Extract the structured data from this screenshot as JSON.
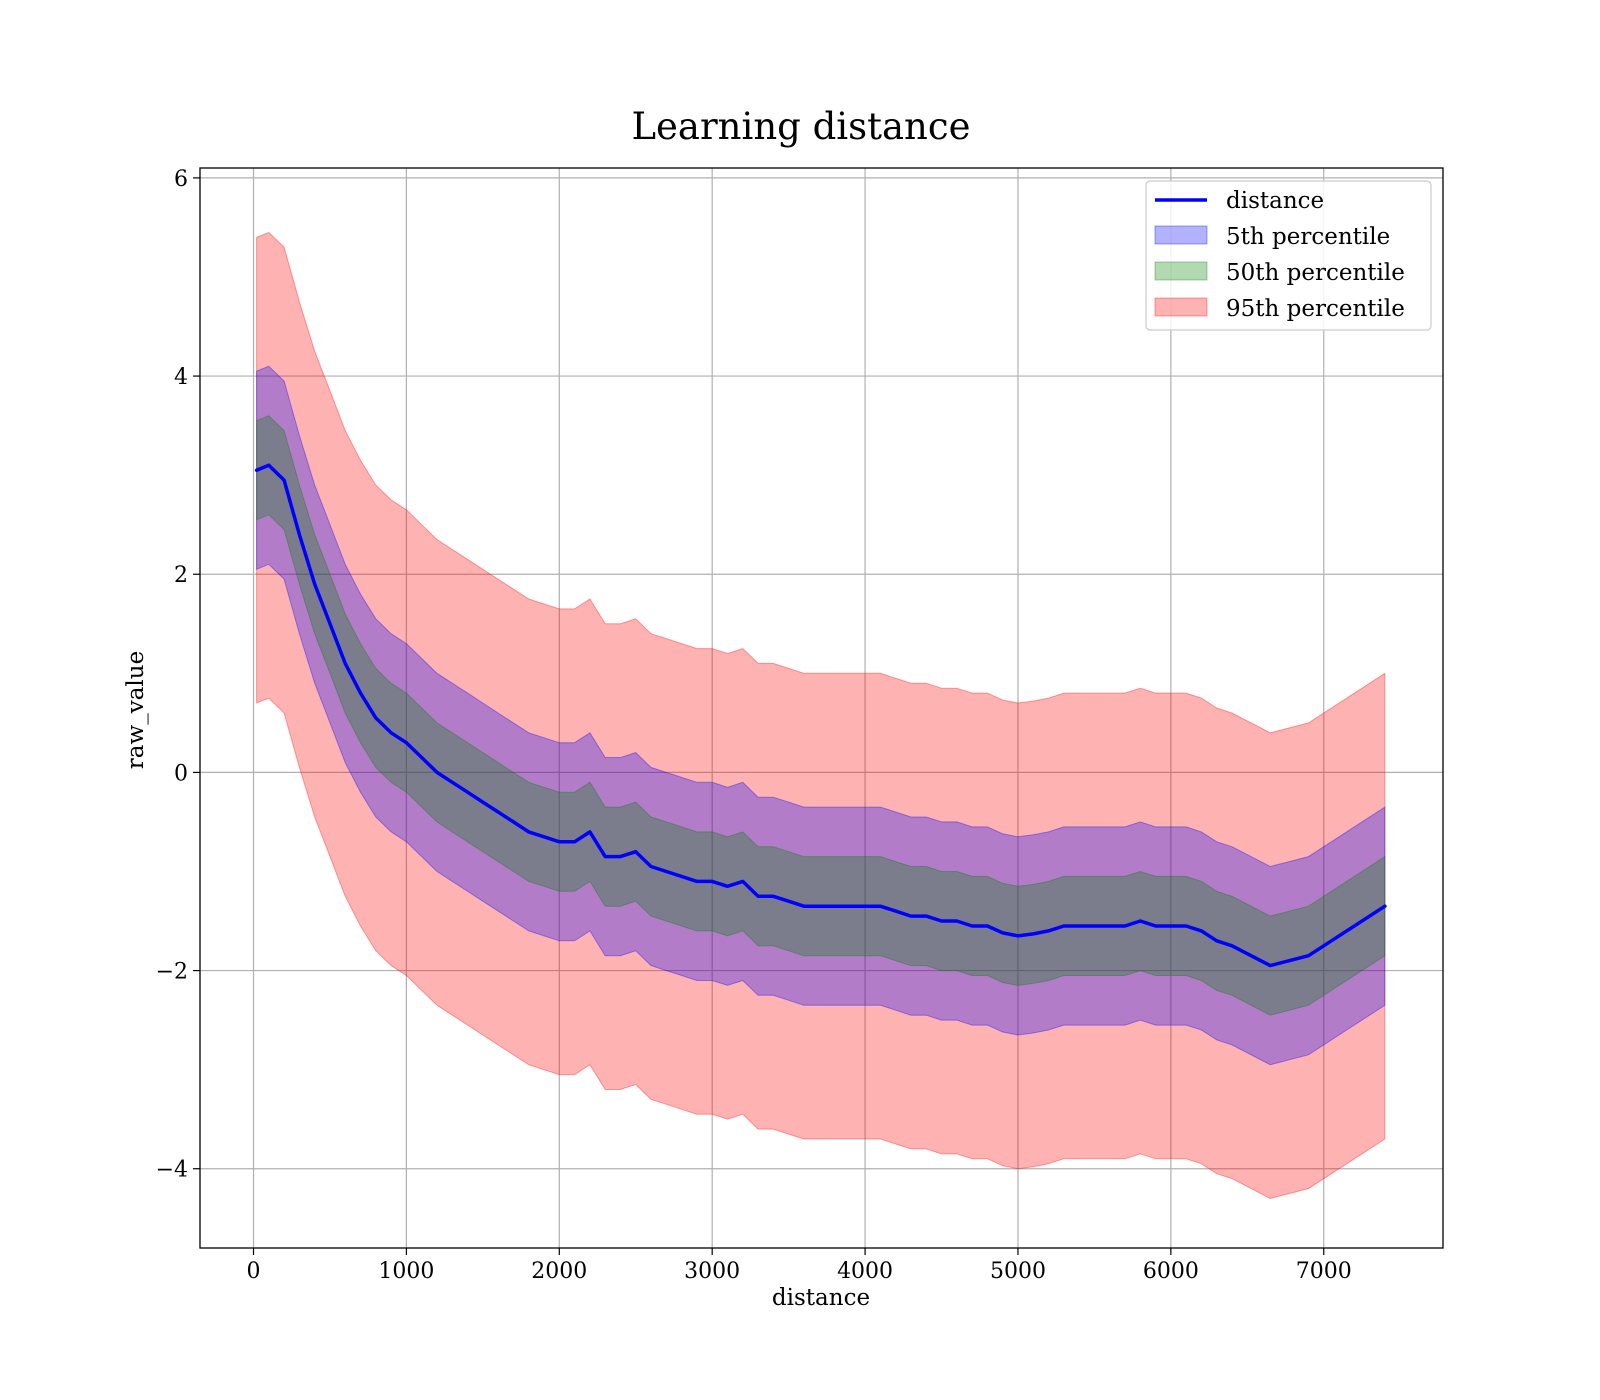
{
  "chart_data": {
    "type": "line",
    "title": "Learning distance",
    "xlabel": "distance",
    "ylabel": "raw_value",
    "xlim": [
      -350,
      7780
    ],
    "ylim": [
      -4.8,
      6.1
    ],
    "xticks": [
      0,
      1000,
      2000,
      3000,
      4000,
      5000,
      6000,
      7000
    ],
    "yticks": [
      -4,
      -2,
      0,
      2,
      4,
      6
    ],
    "xtick_labels": [
      "0",
      "1000",
      "2000",
      "3000",
      "4000",
      "5000",
      "6000",
      "7000"
    ],
    "ytick_labels": [
      "−4",
      "−2",
      "0",
      "2",
      "4",
      "6"
    ],
    "grid": true,
    "legend_position": "top-right",
    "legend": [
      {
        "label": "distance",
        "kind": "line"
      },
      {
        "label": "5th percentile",
        "kind": "band"
      },
      {
        "label": "50th percentile",
        "kind": "band"
      },
      {
        "label": "95th percentile",
        "kind": "band"
      }
    ],
    "series": [
      {
        "name": "distance",
        "color": "#0000ff",
        "x": [
          20,
          100,
          200,
          300,
          400,
          500,
          600,
          700,
          800,
          900,
          1000,
          1100,
          1200,
          1300,
          1400,
          1500,
          1600,
          1700,
          1800,
          1900,
          2000,
          2100,
          2200,
          2300,
          2400,
          2500,
          2600,
          2700,
          2800,
          2900,
          3000,
          3100,
          3200,
          3300,
          3400,
          3500,
          3600,
          3700,
          3800,
          3900,
          4000,
          4100,
          4200,
          4300,
          4400,
          4500,
          4600,
          4700,
          4800,
          4900,
          5000,
          5100,
          5200,
          5300,
          5400,
          5500,
          5600,
          5700,
          5800,
          5900,
          6000,
          6100,
          6200,
          6300,
          6400,
          6650,
          6900,
          7400
        ],
        "y": [
          3.05,
          3.1,
          2.95,
          2.4,
          1.9,
          1.5,
          1.1,
          0.8,
          0.55,
          0.4,
          0.3,
          0.15,
          0.0,
          -0.1,
          -0.2,
          -0.3,
          -0.4,
          -0.5,
          -0.6,
          -0.65,
          -0.7,
          -0.7,
          -0.6,
          -0.85,
          -0.85,
          -0.8,
          -0.95,
          -1.0,
          -1.05,
          -1.1,
          -1.1,
          -1.15,
          -1.1,
          -1.25,
          -1.25,
          -1.3,
          -1.35,
          -1.35,
          -1.35,
          -1.35,
          -1.35,
          -1.35,
          -1.4,
          -1.45,
          -1.45,
          -1.5,
          -1.5,
          -1.55,
          -1.55,
          -1.62,
          -1.65,
          -1.63,
          -1.6,
          -1.55,
          -1.55,
          -1.55,
          -1.55,
          -1.55,
          -1.5,
          -1.55,
          -1.55,
          -1.55,
          -1.6,
          -1.7,
          -1.75,
          -1.95,
          -1.85,
          -1.35
        ]
      }
    ],
    "bands": [
      {
        "name": "5th percentile",
        "color": "#0000ff",
        "offset": 1.0
      },
      {
        "name": "50th percentile",
        "color": "#008000",
        "offset": 0.5
      },
      {
        "name": "95th percentile",
        "color": "#ff0000",
        "offset": 2.35
      }
    ]
  }
}
